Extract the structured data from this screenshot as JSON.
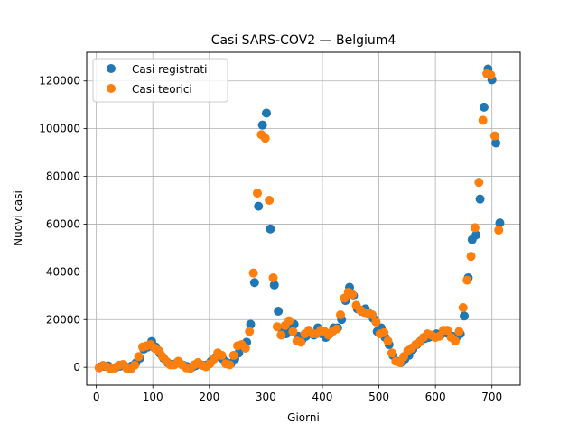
{
  "chart_data": {
    "type": "scatter",
    "title": "Casi SARS-COV2 — Belgium4",
    "xlabel": "Giorni",
    "ylabel": "Nuovi casi",
    "xlim": [
      -17,
      750
    ],
    "ylim": [
      -7500,
      132000
    ],
    "xticks": [
      0,
      100,
      200,
      300,
      400,
      500,
      600,
      700
    ],
    "yticks": [
      0,
      20000,
      40000,
      60000,
      80000,
      100000,
      120000
    ],
    "grid": true,
    "legend_position": "top-left",
    "series": [
      {
        "name": "Casi registrati",
        "color": "#1f77b4",
        "points": [
          [
            7,
            200
          ],
          [
            14,
            400
          ],
          [
            21,
            600
          ],
          [
            28,
            -300
          ],
          [
            35,
            0
          ],
          [
            42,
            500
          ],
          [
            49,
            800
          ],
          [
            56,
            -200
          ],
          [
            63,
            600
          ],
          [
            70,
            1800
          ],
          [
            77,
            3800
          ],
          [
            84,
            7600
          ],
          [
            91,
            8500
          ],
          [
            98,
            10800
          ],
          [
            105,
            8500
          ],
          [
            112,
            6000
          ],
          [
            119,
            3800
          ],
          [
            126,
            2000
          ],
          [
            133,
            1200
          ],
          [
            140,
            1500
          ],
          [
            147,
            1800
          ],
          [
            154,
            900
          ],
          [
            161,
            300
          ],
          [
            168,
            -200
          ],
          [
            175,
            600
          ],
          [
            182,
            1500
          ],
          [
            189,
            800
          ],
          [
            196,
            1000
          ],
          [
            203,
            2500
          ],
          [
            210,
            4000
          ],
          [
            217,
            4500
          ],
          [
            224,
            3500
          ],
          [
            231,
            2000
          ],
          [
            238,
            1500
          ],
          [
            245,
            3500
          ],
          [
            252,
            6000
          ],
          [
            259,
            8500
          ],
          [
            266,
            10500
          ],
          [
            273,
            18000
          ],
          [
            280,
            35500
          ],
          [
            287,
            67500
          ],
          [
            294,
            101500
          ],
          [
            301,
            106500
          ],
          [
            308,
            58000
          ],
          [
            315,
            34500
          ],
          [
            322,
            23500
          ],
          [
            329,
            15500
          ],
          [
            336,
            14000
          ],
          [
            343,
            16500
          ],
          [
            350,
            18000
          ],
          [
            357,
            13000
          ],
          [
            364,
            11500
          ],
          [
            371,
            13000
          ],
          [
            378,
            14500
          ],
          [
            385,
            13500
          ],
          [
            392,
            16500
          ],
          [
            399,
            14000
          ],
          [
            406,
            12500
          ],
          [
            413,
            14000
          ],
          [
            420,
            16500
          ],
          [
            427,
            16500
          ],
          [
            434,
            20000
          ],
          [
            441,
            28000
          ],
          [
            448,
            33500
          ],
          [
            455,
            30000
          ],
          [
            462,
            24500
          ],
          [
            469,
            23500
          ],
          [
            476,
            24500
          ],
          [
            483,
            22500
          ],
          [
            490,
            20500
          ],
          [
            497,
            15000
          ],
          [
            504,
            16500
          ],
          [
            511,
            12500
          ],
          [
            518,
            9500
          ],
          [
            525,
            5000
          ],
          [
            532,
            2500
          ],
          [
            539,
            2000
          ],
          [
            546,
            3500
          ],
          [
            553,
            5000
          ],
          [
            560,
            7500
          ],
          [
            567,
            9500
          ],
          [
            574,
            11000
          ],
          [
            581,
            12000
          ],
          [
            588,
            12500
          ],
          [
            595,
            13000
          ],
          [
            602,
            14000
          ],
          [
            609,
            13500
          ],
          [
            616,
            14500
          ],
          [
            623,
            14000
          ],
          [
            630,
            13000
          ],
          [
            637,
            12500
          ],
          [
            644,
            14000
          ],
          [
            651,
            21500
          ],
          [
            658,
            37500
          ],
          [
            665,
            53500
          ],
          [
            672,
            55500
          ],
          [
            679,
            70500
          ],
          [
            686,
            109000
          ],
          [
            693,
            125000
          ],
          [
            700,
            120500
          ],
          [
            707,
            94000
          ],
          [
            714,
            60500
          ]
        ]
      },
      {
        "name": "Casi teorici",
        "color": "#ff7f0e",
        "points": [
          [
            5,
            -200
          ],
          [
            12,
            800
          ],
          [
            19,
            200
          ],
          [
            26,
            -700
          ],
          [
            33,
            -300
          ],
          [
            40,
            900
          ],
          [
            47,
            1200
          ],
          [
            54,
            -500
          ],
          [
            61,
            -700
          ],
          [
            68,
            900
          ],
          [
            75,
            4500
          ],
          [
            82,
            8500
          ],
          [
            89,
            9000
          ],
          [
            96,
            9500
          ],
          [
            103,
            8000
          ],
          [
            110,
            7000
          ],
          [
            117,
            4500
          ],
          [
            124,
            2500
          ],
          [
            131,
            1000
          ],
          [
            138,
            1000
          ],
          [
            145,
            2500
          ],
          [
            152,
            1000
          ],
          [
            159,
            -200
          ],
          [
            166,
            -500
          ],
          [
            173,
            1000
          ],
          [
            180,
            2000
          ],
          [
            187,
            800
          ],
          [
            194,
            200
          ],
          [
            201,
            1500
          ],
          [
            208,
            3500
          ],
          [
            215,
            6000
          ],
          [
            222,
            5000
          ],
          [
            229,
            1500
          ],
          [
            236,
            1000
          ],
          [
            243,
            5000
          ],
          [
            250,
            9000
          ],
          [
            257,
            9500
          ],
          [
            264,
            8000
          ],
          [
            271,
            15000
          ],
          [
            278,
            39500
          ],
          [
            285,
            73000
          ],
          [
            292,
            97500
          ],
          [
            299,
            96000
          ],
          [
            306,
            70000
          ],
          [
            313,
            37500
          ],
          [
            320,
            17000
          ],
          [
            327,
            13500
          ],
          [
            334,
            17500
          ],
          [
            341,
            19500
          ],
          [
            348,
            15000
          ],
          [
            355,
            11000
          ],
          [
            362,
            10500
          ],
          [
            369,
            14000
          ],
          [
            376,
            15500
          ],
          [
            383,
            14000
          ],
          [
            390,
            14000
          ],
          [
            397,
            15500
          ],
          [
            404,
            15000
          ],
          [
            411,
            13500
          ],
          [
            418,
            15000
          ],
          [
            425,
            16000
          ],
          [
            432,
            22000
          ],
          [
            439,
            29000
          ],
          [
            446,
            31500
          ],
          [
            453,
            30500
          ],
          [
            460,
            26000
          ],
          [
            467,
            24000
          ],
          [
            474,
            23000
          ],
          [
            481,
            22500
          ],
          [
            488,
            22000
          ],
          [
            495,
            19000
          ],
          [
            502,
            14000
          ],
          [
            509,
            14500
          ],
          [
            516,
            11000
          ],
          [
            523,
            6000
          ],
          [
            530,
            2500
          ],
          [
            537,
            2000
          ],
          [
            544,
            4500
          ],
          [
            551,
            7000
          ],
          [
            558,
            8000
          ],
          [
            565,
            9500
          ],
          [
            572,
            10500
          ],
          [
            579,
            12500
          ],
          [
            586,
            14000
          ],
          [
            593,
            13500
          ],
          [
            600,
            12500
          ],
          [
            607,
            13000
          ],
          [
            614,
            15500
          ],
          [
            621,
            15500
          ],
          [
            628,
            12500
          ],
          [
            635,
            11000
          ],
          [
            642,
            15000
          ],
          [
            649,
            25000
          ],
          [
            656,
            36500
          ],
          [
            663,
            46500
          ],
          [
            670,
            58500
          ],
          [
            677,
            77500
          ],
          [
            684,
            103500
          ],
          [
            691,
            123000
          ],
          [
            698,
            122500
          ],
          [
            705,
            97000
          ],
          [
            712,
            57500
          ]
        ]
      }
    ]
  }
}
